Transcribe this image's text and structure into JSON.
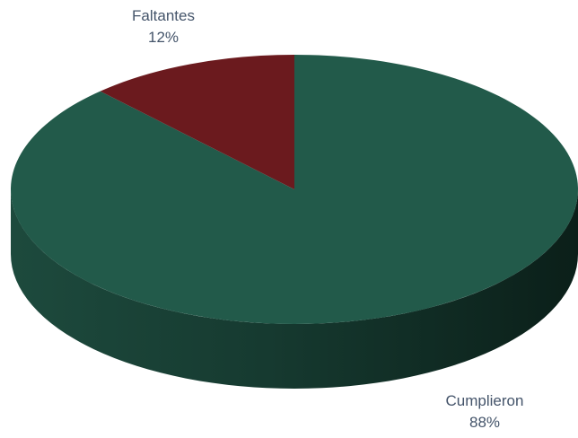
{
  "chart_data": {
    "type": "pie",
    "style": "3d",
    "title": "",
    "slices": [
      {
        "label": "Cumplieron",
        "value": 88,
        "value_label": "88%",
        "color": "#225a4a"
      },
      {
        "label": "Faltantes",
        "value": 12,
        "value_label": "12%",
        "color": "#6b1a1e"
      }
    ],
    "legend": "none",
    "data_labels": "outside"
  }
}
